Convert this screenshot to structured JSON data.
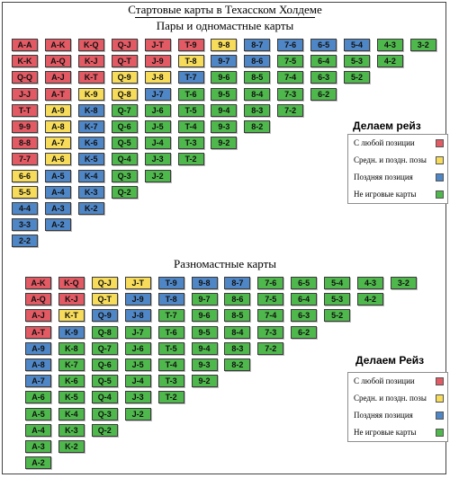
{
  "title": "Стартовые карты в Техасском Холдеме",
  "section1": {
    "title": "Пары и одномастные карты",
    "columns": [
      [
        [
          "A-A",
          "red"
        ],
        [
          "K-K",
          "red"
        ],
        [
          "Q-Q",
          "red"
        ],
        [
          "J-J",
          "red"
        ],
        [
          "T-T",
          "red"
        ],
        [
          "9-9",
          "red"
        ],
        [
          "8-8",
          "red"
        ],
        [
          "7-7",
          "red"
        ],
        [
          "6-6",
          "yellow"
        ],
        [
          "5-5",
          "yellow"
        ],
        [
          "4-4",
          "blue"
        ],
        [
          "3-3",
          "blue"
        ],
        [
          "2-2",
          "blue"
        ]
      ],
      [
        [
          "A-K",
          "red"
        ],
        [
          "A-Q",
          "red"
        ],
        [
          "A-J",
          "red"
        ],
        [
          "A-T",
          "red"
        ],
        [
          "A-9",
          "yellow"
        ],
        [
          "A-8",
          "yellow"
        ],
        [
          "A-7",
          "yellow"
        ],
        [
          "A-6",
          "yellow"
        ],
        [
          "A-5",
          "blue"
        ],
        [
          "A-4",
          "blue"
        ],
        [
          "A-3",
          "blue"
        ],
        [
          "A-2",
          "blue"
        ]
      ],
      [
        [
          "K-Q",
          "red"
        ],
        [
          "K-J",
          "red"
        ],
        [
          "K-T",
          "red"
        ],
        [
          "K-9",
          "yellow"
        ],
        [
          "K-8",
          "blue"
        ],
        [
          "K-7",
          "blue"
        ],
        [
          "K-6",
          "blue"
        ],
        [
          "K-5",
          "blue"
        ],
        [
          "K-4",
          "blue"
        ],
        [
          "K-3",
          "blue"
        ],
        [
          "K-2",
          "blue"
        ]
      ],
      [
        [
          "Q-J",
          "red"
        ],
        [
          "Q-T",
          "red"
        ],
        [
          "Q-9",
          "yellow"
        ],
        [
          "Q-8",
          "yellow"
        ],
        [
          "Q-7",
          "green"
        ],
        [
          "Q-6",
          "green"
        ],
        [
          "Q-5",
          "green"
        ],
        [
          "Q-4",
          "green"
        ],
        [
          "Q-3",
          "green"
        ],
        [
          "Q-2",
          "green"
        ]
      ],
      [
        [
          "J-T",
          "red"
        ],
        [
          "J-9",
          "red"
        ],
        [
          "J-8",
          "yellow"
        ],
        [
          "J-7",
          "blue"
        ],
        [
          "J-6",
          "green"
        ],
        [
          "J-5",
          "green"
        ],
        [
          "J-4",
          "green"
        ],
        [
          "J-3",
          "green"
        ],
        [
          "J-2",
          "green"
        ]
      ],
      [
        [
          "T-9",
          "red"
        ],
        [
          "T-8",
          "yellow"
        ],
        [
          "T-7",
          "blue"
        ],
        [
          "T-6",
          "green"
        ],
        [
          "T-5",
          "green"
        ],
        [
          "T-4",
          "green"
        ],
        [
          "T-3",
          "green"
        ],
        [
          "T-2",
          "green"
        ]
      ],
      [
        [
          "9-8",
          "yellow"
        ],
        [
          "9-7",
          "blue"
        ],
        [
          "9-6",
          "green"
        ],
        [
          "9-5",
          "green"
        ],
        [
          "9-4",
          "green"
        ],
        [
          "9-3",
          "green"
        ],
        [
          "9-2",
          "green"
        ]
      ],
      [
        [
          "8-7",
          "blue"
        ],
        [
          "8-6",
          "blue"
        ],
        [
          "8-5",
          "green"
        ],
        [
          "8-4",
          "green"
        ],
        [
          "8-3",
          "green"
        ],
        [
          "8-2",
          "green"
        ]
      ],
      [
        [
          "7-6",
          "blue"
        ],
        [
          "7-5",
          "green"
        ],
        [
          "7-4",
          "green"
        ],
        [
          "7-3",
          "green"
        ],
        [
          "7-2",
          "green"
        ]
      ],
      [
        [
          "6-5",
          "blue"
        ],
        [
          "6-4",
          "green"
        ],
        [
          "6-3",
          "green"
        ],
        [
          "6-2",
          "green"
        ]
      ],
      [
        [
          "5-4",
          "blue"
        ],
        [
          "5-3",
          "green"
        ],
        [
          "5-2",
          "green"
        ]
      ],
      [
        [
          "4-3",
          "green"
        ],
        [
          "4-2",
          "green"
        ]
      ],
      [
        [
          "3-2",
          "green"
        ]
      ]
    ],
    "legend": {
      "heading": "Делаем рейз",
      "items": [
        {
          "label": "С любой позиции",
          "color": "#e25a63"
        },
        {
          "label": "Средн. и поздн. позы",
          "color": "#f6dc5a"
        },
        {
          "label": "Поздняя позиция",
          "color": "#4f86c6"
        },
        {
          "label": "Не игровые карты",
          "color": "#4fb84c"
        }
      ]
    }
  },
  "section2": {
    "title": "Разномастные карты",
    "columns": [
      [
        [
          "A-K",
          "red"
        ],
        [
          "A-Q",
          "red"
        ],
        [
          "A-J",
          "red"
        ],
        [
          "A-T",
          "red"
        ],
        [
          "A-9",
          "blue"
        ],
        [
          "A-8",
          "blue"
        ],
        [
          "A-7",
          "blue"
        ],
        [
          "A-6",
          "green"
        ],
        [
          "A-5",
          "green"
        ],
        [
          "A-4",
          "green"
        ],
        [
          "A-3",
          "green"
        ],
        [
          "A-2",
          "green"
        ]
      ],
      [
        [
          "K-Q",
          "red"
        ],
        [
          "K-J",
          "red"
        ],
        [
          "K-T",
          "yellow"
        ],
        [
          "K-9",
          "blue"
        ],
        [
          "K-8",
          "green"
        ],
        [
          "K-7",
          "green"
        ],
        [
          "K-6",
          "green"
        ],
        [
          "K-5",
          "green"
        ],
        [
          "K-4",
          "green"
        ],
        [
          "K-3",
          "green"
        ],
        [
          "K-2",
          "green"
        ]
      ],
      [
        [
          "Q-J",
          "yellow"
        ],
        [
          "Q-T",
          "yellow"
        ],
        [
          "Q-9",
          "blue"
        ],
        [
          "Q-8",
          "green"
        ],
        [
          "Q-7",
          "green"
        ],
        [
          "Q-6",
          "green"
        ],
        [
          "Q-5",
          "green"
        ],
        [
          "Q-4",
          "green"
        ],
        [
          "Q-3",
          "green"
        ],
        [
          "Q-2",
          "green"
        ]
      ],
      [
        [
          "J-T",
          "yellow"
        ],
        [
          "J-9",
          "blue"
        ],
        [
          "J-8",
          "blue"
        ],
        [
          "J-7",
          "green"
        ],
        [
          "J-6",
          "green"
        ],
        [
          "J-5",
          "green"
        ],
        [
          "J-4",
          "green"
        ],
        [
          "J-3",
          "green"
        ],
        [
          "J-2",
          "green"
        ]
      ],
      [
        [
          "T-9",
          "blue"
        ],
        [
          "T-8",
          "blue"
        ],
        [
          "T-7",
          "green"
        ],
        [
          "T-6",
          "green"
        ],
        [
          "T-5",
          "green"
        ],
        [
          "T-4",
          "green"
        ],
        [
          "T-3",
          "green"
        ],
        [
          "T-2",
          "green"
        ]
      ],
      [
        [
          "9-8",
          "blue"
        ],
        [
          "9-7",
          "green"
        ],
        [
          "9-6",
          "green"
        ],
        [
          "9-5",
          "green"
        ],
        [
          "9-4",
          "green"
        ],
        [
          "9-3",
          "green"
        ],
        [
          "9-2",
          "green"
        ]
      ],
      [
        [
          "8-7",
          "blue"
        ],
        [
          "8-6",
          "green"
        ],
        [
          "8-5",
          "green"
        ],
        [
          "8-4",
          "green"
        ],
        [
          "8-3",
          "green"
        ],
        [
          "8-2",
          "green"
        ]
      ],
      [
        [
          "7-6",
          "green"
        ],
        [
          "7-5",
          "green"
        ],
        [
          "7-4",
          "green"
        ],
        [
          "7-3",
          "green"
        ],
        [
          "7-2",
          "green"
        ]
      ],
      [
        [
          "6-5",
          "green"
        ],
        [
          "6-4",
          "green"
        ],
        [
          "6-3",
          "green"
        ],
        [
          "6-2",
          "green"
        ]
      ],
      [
        [
          "5-4",
          "green"
        ],
        [
          "5-3",
          "green"
        ],
        [
          "5-2",
          "green"
        ]
      ],
      [
        [
          "4-3",
          "green"
        ],
        [
          "4-2",
          "green"
        ]
      ],
      [
        [
          "3-2",
          "green"
        ]
      ]
    ],
    "legend": {
      "heading": "Делаем Рейз",
      "items": [
        {
          "label": "С любой позиции",
          "color": "#e25a63"
        },
        {
          "label": "Средн. и поздн. позы",
          "color": "#f6dc5a"
        },
        {
          "label": "Поздняя позиция",
          "color": "#4f86c6"
        },
        {
          "label": "Не игровые карты",
          "color": "#4fb84c"
        }
      ]
    }
  }
}
